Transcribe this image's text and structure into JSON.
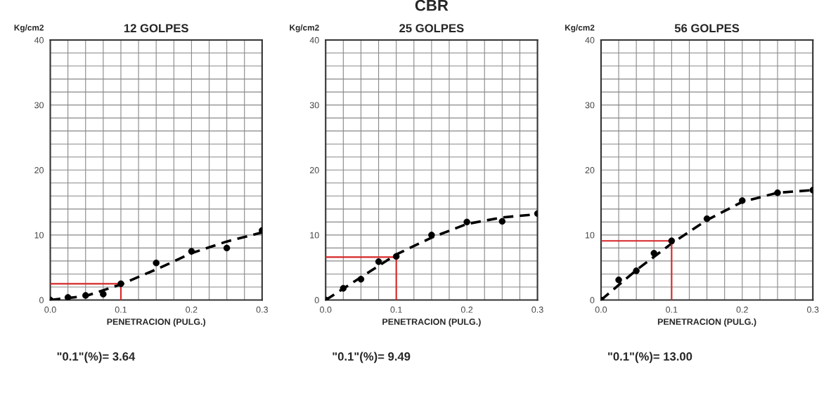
{
  "chart_data": [
    {
      "type": "scatter",
      "title": "12 GOLPES",
      "xlabel": "PENETRACION (PULG.)",
      "ylabel": "Kg/cm2",
      "annotations": [
        "\"0.1\"(%)= 3.64"
      ],
      "xlim": [
        0,
        0.3
      ],
      "ylim": [
        0,
        40
      ],
      "grid": true,
      "marker": "circle",
      "xticks": [
        {
          "value": 0,
          "label": "0.0"
        },
        {
          "value": 0.025,
          "label": null
        },
        {
          "value": 0.05,
          "label": null
        },
        {
          "value": 0.075,
          "label": null
        },
        0.1,
        {
          "value": 0.125,
          "label": null
        },
        {
          "value": 0.15,
          "label": null
        },
        {
          "value": 0.175,
          "label": null
        },
        0.2,
        {
          "value": 0.225,
          "label": null
        },
        {
          "value": 0.25,
          "label": null
        },
        {
          "value": 0.275,
          "label": null
        },
        0.3
      ],
      "yticks": [
        0,
        {
          "value": 2,
          "label": null
        },
        {
          "value": 4,
          "label": null
        },
        {
          "value": 6,
          "label": null
        },
        {
          "value": 8,
          "label": null
        },
        10,
        {
          "value": 12,
          "label": null
        },
        {
          "value": 14,
          "label": null
        },
        {
          "value": 16,
          "label": null
        },
        {
          "value": 18,
          "label": null
        },
        20,
        {
          "value": 22,
          "label": null
        },
        {
          "value": 24,
          "label": null
        },
        {
          "value": 26,
          "label": null
        },
        {
          "value": 28,
          "label": null
        },
        30,
        {
          "value": 32,
          "label": null
        },
        {
          "value": 34,
          "label": null
        },
        {
          "value": 36,
          "label": null
        },
        {
          "value": 38,
          "label": null
        },
        40
      ],
      "series": [
        {
          "type": "line",
          "color": "#000000",
          "line_style": "dashed",
          "marker": "none",
          "x": [
            0,
            0.05,
            0.1,
            0.15,
            0.2,
            0.25,
            0.3
          ],
          "values": [
            0,
            0.6,
            2.4,
            4.7,
            7.2,
            9.0,
            10.4
          ]
        },
        {
          "type": "line",
          "color": "#d62728",
          "line_style": "solid",
          "marker": "none",
          "x": [
            0,
            0.1,
            0.1
          ],
          "values": [
            2.5,
            2.5,
            0
          ]
        },
        {
          "color": "#000000",
          "x": [
            0,
            0.025,
            0.05,
            0.075,
            0.1,
            0.15,
            0.2,
            0.25,
            0.3
          ],
          "values": [
            0,
            0.4,
            0.7,
            0.9,
            2.5,
            5.7,
            7.5,
            8.0,
            10.7
          ]
        }
      ]
    },
    {
      "type": "scatter",
      "title": "25 GOLPES",
      "xlabel": "PENETRACION (PULG.)",
      "ylabel": "Kg/cm2",
      "annotations": [
        "CBR",
        "\"0.1\"(%)= 9.49"
      ],
      "xlim": [
        0,
        0.3
      ],
      "ylim": [
        0,
        40
      ],
      "grid": true,
      "marker": "circle",
      "xticks": [
        {
          "value": 0,
          "label": "0.0"
        },
        {
          "value": 0.025,
          "label": null
        },
        {
          "value": 0.05,
          "label": null
        },
        {
          "value": 0.075,
          "label": null
        },
        0.1,
        {
          "value": 0.125,
          "label": null
        },
        {
          "value": 0.15,
          "label": null
        },
        {
          "value": 0.175,
          "label": null
        },
        0.2,
        {
          "value": 0.225,
          "label": null
        },
        {
          "value": 0.25,
          "label": null
        },
        {
          "value": 0.275,
          "label": null
        },
        0.3
      ],
      "yticks": [
        0,
        {
          "value": 2,
          "label": null
        },
        {
          "value": 4,
          "label": null
        },
        {
          "value": 6,
          "label": null
        },
        {
          "value": 8,
          "label": null
        },
        10,
        {
          "value": 12,
          "label": null
        },
        {
          "value": 14,
          "label": null
        },
        {
          "value": 16,
          "label": null
        },
        {
          "value": 18,
          "label": null
        },
        20,
        {
          "value": 22,
          "label": null
        },
        {
          "value": 24,
          "label": null
        },
        {
          "value": 26,
          "label": null
        },
        {
          "value": 28,
          "label": null
        },
        30,
        {
          "value": 32,
          "label": null
        },
        {
          "value": 34,
          "label": null
        },
        {
          "value": 36,
          "label": null
        },
        {
          "value": 38,
          "label": null
        },
        40
      ],
      "series": [
        {
          "type": "line",
          "color": "#000000",
          "line_style": "dashed",
          "marker": "none",
          "x": [
            0,
            0.05,
            0.1,
            0.15,
            0.2,
            0.25,
            0.3
          ],
          "values": [
            0,
            3.5,
            7.0,
            9.6,
            11.7,
            12.7,
            13.2
          ]
        },
        {
          "type": "line",
          "color": "#d62728",
          "line_style": "solid",
          "marker": "none",
          "x": [
            0,
            0.1,
            0.1
          ],
          "values": [
            6.6,
            6.6,
            0
          ]
        },
        {
          "color": "#000000",
          "x": [
            0,
            0.025,
            0.05,
            0.075,
            0.1,
            0.15,
            0.2,
            0.25,
            0.3
          ],
          "values": [
            0,
            1.8,
            3.2,
            5.9,
            6.7,
            10.0,
            12.0,
            12.1,
            13.3
          ]
        }
      ]
    },
    {
      "type": "scatter",
      "title": "56 GOLPES",
      "xlabel": "PENETRACION (PULG.)",
      "ylabel": "Kg/cm2",
      "annotations": [
        "\"0.1\"(%)= 13.00"
      ],
      "xlim": [
        0,
        0.3
      ],
      "ylim": [
        0,
        40
      ],
      "grid": true,
      "marker": "circle",
      "xticks": [
        {
          "value": 0,
          "label": "0.0"
        },
        {
          "value": 0.025,
          "label": null
        },
        {
          "value": 0.05,
          "label": null
        },
        {
          "value": 0.075,
          "label": null
        },
        0.1,
        {
          "value": 0.125,
          "label": null
        },
        {
          "value": 0.15,
          "label": null
        },
        {
          "value": 0.175,
          "label": null
        },
        0.2,
        {
          "value": 0.225,
          "label": null
        },
        {
          "value": 0.25,
          "label": null
        },
        {
          "value": 0.275,
          "label": null
        },
        0.3
      ],
      "yticks": [
        0,
        {
          "value": 2,
          "label": null
        },
        {
          "value": 4,
          "label": null
        },
        {
          "value": 6,
          "label": null
        },
        {
          "value": 8,
          "label": null
        },
        10,
        {
          "value": 12,
          "label": null
        },
        {
          "value": 14,
          "label": null
        },
        {
          "value": 16,
          "label": null
        },
        {
          "value": 18,
          "label": null
        },
        20,
        {
          "value": 22,
          "label": null
        },
        {
          "value": 24,
          "label": null
        },
        {
          "value": 26,
          "label": null
        },
        {
          "value": 28,
          "label": null
        },
        30,
        {
          "value": 32,
          "label": null
        },
        {
          "value": 34,
          "label": null
        },
        {
          "value": 36,
          "label": null
        },
        {
          "value": 38,
          "label": null
        },
        40
      ],
      "series": [
        {
          "type": "line",
          "color": "#000000",
          "line_style": "dashed",
          "marker": "none",
          "x": [
            0,
            0.05,
            0.1,
            0.15,
            0.2,
            0.25,
            0.3
          ],
          "values": [
            0,
            4.6,
            8.7,
            12.3,
            15.1,
            16.5,
            16.9
          ]
        },
        {
          "type": "line",
          "color": "#d62728",
          "line_style": "solid",
          "marker": "none",
          "x": [
            0,
            0.1,
            0.1
          ],
          "values": [
            9.1,
            9.1,
            0
          ]
        },
        {
          "color": "#000000",
          "x": [
            0,
            0.025,
            0.05,
            0.075,
            0.1,
            0.15,
            0.2,
            0.25,
            0.3
          ],
          "values": [
            0,
            3.1,
            4.5,
            7.2,
            9.1,
            12.5,
            15.3,
            16.5,
            16.9
          ]
        }
      ]
    }
  ]
}
